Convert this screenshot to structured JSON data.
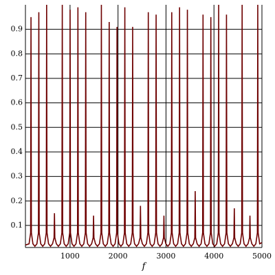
{
  "chart_data": {
    "type": "line",
    "xlabel": "f",
    "color": "#6e0000",
    "grid": true,
    "xlim": [
      70,
      5000
    ],
    "ylim": [
      0.01,
      1.0
    ],
    "xticks": [
      1000,
      2000,
      3000,
      4000,
      5000
    ],
    "yticks": [
      0.1,
      0.2,
      0.3,
      0.4,
      0.5,
      0.6,
      0.7,
      0.8,
      0.9
    ],
    "x": [
      70,
      146,
      178,
      186,
      194,
      226,
      267,
      309,
      341,
      349,
      357,
      389,
      430,
      472,
      504,
      512,
      520,
      552,
      593,
      635,
      667,
      675,
      683,
      715,
      756,
      798,
      830,
      838,
      846,
      878,
      919,
      961,
      993,
      1001,
      1009,
      1041,
      1082,
      1124,
      1156,
      1164,
      1172,
      1204,
      1245,
      1287,
      1319,
      1327,
      1335,
      1367,
      1408,
      1450,
      1482,
      1490,
      1498,
      1530,
      1571,
      1613,
      1645,
      1653,
      1661,
      1693,
      1734,
      1776,
      1808,
      1816,
      1824,
      1856,
      1897,
      1939,
      1971,
      1979,
      1987,
      2019,
      2060,
      2102,
      2134,
      2142,
      2150,
      2182,
      2223,
      2265,
      2297,
      2305,
      2313,
      2345,
      2386,
      2428,
      2460,
      2468,
      2476,
      2508,
      2549,
      2591,
      2623,
      2631,
      2639,
      2671,
      2712,
      2754,
      2786,
      2794,
      2802,
      2834,
      2875,
      2917,
      2949,
      2957,
      2965,
      2997,
      3038,
      3080,
      3112,
      3120,
      3128,
      3160,
      3201,
      3243,
      3275,
      3283,
      3291,
      3323,
      3364,
      3406,
      3438,
      3446,
      3454,
      3486,
      3527,
      3569,
      3601,
      3609,
      3617,
      3649,
      3690,
      3732,
      3764,
      3772,
      3780,
      3812,
      3853,
      3895,
      3927,
      3935,
      3943,
      3975,
      4016,
      4058,
      4090,
      4098,
      4106,
      4138,
      4179,
      4221,
      4253,
      4261,
      4269,
      4301,
      4342,
      4384,
      4416,
      4424,
      4432,
      4464,
      4505,
      4547,
      4579,
      4587,
      4595,
      4627,
      4668,
      4710,
      4742,
      4750,
      4758,
      4790,
      4831,
      4873,
      4905,
      4913,
      4921,
      4953,
      5000
    ],
    "series": [
      {
        "values": [
          0.02,
          0.025,
          0.07,
          0.95,
          0.07,
          0.025,
          0.015,
          0.025,
          0.07,
          0.97,
          0.07,
          0.025,
          0.015,
          0.025,
          0.07,
          1.0,
          0.07,
          0.025,
          0.015,
          0.025,
          0.05,
          0.15,
          0.05,
          0.025,
          0.015,
          0.025,
          0.07,
          1.0,
          0.07,
          0.025,
          0.015,
          0.025,
          0.07,
          0.98,
          0.07,
          0.025,
          0.015,
          0.025,
          0.07,
          0.99,
          0.07,
          0.025,
          0.015,
          0.025,
          0.07,
          0.97,
          0.07,
          0.025,
          0.015,
          0.025,
          0.05,
          0.14,
          0.05,
          0.025,
          0.015,
          0.025,
          0.07,
          1.0,
          0.07,
          0.025,
          0.015,
          0.025,
          0.07,
          0.93,
          0.07,
          0.025,
          0.015,
          0.025,
          0.07,
          0.91,
          0.07,
          0.025,
          0.015,
          0.025,
          0.07,
          0.99,
          0.07,
          0.025,
          0.015,
          0.025,
          0.07,
          0.91,
          0.07,
          0.025,
          0.015,
          0.025,
          0.05,
          0.18,
          0.05,
          0.025,
          0.015,
          0.025,
          0.07,
          0.97,
          0.07,
          0.025,
          0.015,
          0.025,
          0.07,
          0.96,
          0.07,
          0.025,
          0.015,
          0.025,
          0.05,
          0.14,
          0.05,
          0.025,
          0.015,
          0.025,
          0.07,
          0.97,
          0.07,
          0.025,
          0.015,
          0.025,
          0.07,
          0.99,
          0.07,
          0.025,
          0.015,
          0.025,
          0.07,
          0.98,
          0.07,
          0.025,
          0.015,
          0.025,
          0.05,
          0.24,
          0.05,
          0.025,
          0.015,
          0.025,
          0.07,
          0.96,
          0.07,
          0.025,
          0.015,
          0.025,
          0.07,
          0.95,
          0.07,
          0.025,
          0.015,
          0.025,
          0.07,
          1.0,
          0.07,
          0.025,
          0.015,
          0.025,
          0.07,
          0.96,
          0.07,
          0.025,
          0.015,
          0.025,
          0.05,
          0.17,
          0.05,
          0.025,
          0.015,
          0.025,
          0.07,
          1.0,
          0.07,
          0.025,
          0.015,
          0.025,
          0.05,
          0.14,
          0.05,
          0.025,
          0.015,
          0.025,
          0.07,
          1.0,
          0.07,
          0.025,
          0.03
        ]
      }
    ]
  }
}
